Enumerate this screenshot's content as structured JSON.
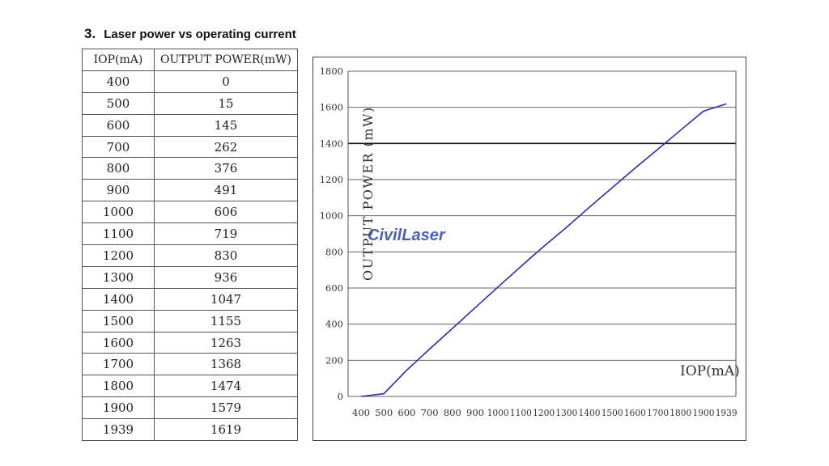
{
  "heading": {
    "number": "3.",
    "title": "Laser power vs operating current"
  },
  "table": {
    "headers": [
      "IOP(mA)",
      "OUTPUT POWER(mW)"
    ],
    "rows": [
      [
        "400",
        "0"
      ],
      [
        "500",
        "15"
      ],
      [
        "600",
        "145"
      ],
      [
        "700",
        "262"
      ],
      [
        "800",
        "376"
      ],
      [
        "900",
        "491"
      ],
      [
        "1000",
        "606"
      ],
      [
        "1100",
        "719"
      ],
      [
        "1200",
        "830"
      ],
      [
        "1300",
        "936"
      ],
      [
        "1400",
        "1047"
      ],
      [
        "1500",
        "1155"
      ],
      [
        "1600",
        "1263"
      ],
      [
        "1700",
        "1368"
      ],
      [
        "1800",
        "1474"
      ],
      [
        "1900",
        "1579"
      ],
      [
        "1939",
        "1619"
      ]
    ]
  },
  "watermark": "CivilLaser",
  "chart_data": {
    "type": "line",
    "title": "",
    "xlabel": "IOP(mA)",
    "ylabel": "OUTPUT POWER (mW)",
    "x_ticks": [
      "400",
      "500",
      "600",
      "700",
      "800",
      "900",
      "1000",
      "1100",
      "1200",
      "1300",
      "1400",
      "1500",
      "1600",
      "1700",
      "1800",
      "1900",
      "1939"
    ],
    "y_ticks": [
      0,
      200,
      400,
      600,
      800,
      1000,
      1200,
      1400,
      1600,
      1800
    ],
    "ylim": [
      0,
      1800
    ],
    "grid": true,
    "emphasized_gridline": 1400,
    "line_color": "#2b2fa8",
    "series": [
      {
        "x": [
          400,
          500,
          600,
          700,
          800,
          900,
          1000,
          1100,
          1200,
          1300,
          1400,
          1500,
          1600,
          1700,
          1800,
          1900,
          1939
        ],
        "values": [
          0,
          15,
          145,
          262,
          376,
          491,
          606,
          719,
          830,
          936,
          1047,
          1155,
          1263,
          1368,
          1474,
          1579,
          1619
        ]
      }
    ]
  }
}
